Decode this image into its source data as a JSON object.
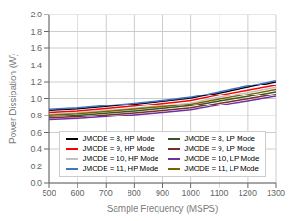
{
  "chart_data": {
    "type": "line",
    "xlabel": "Sample Frequency (MSPS)",
    "ylabel": "Power Dissipation (W)",
    "x": [
      500,
      600,
      700,
      800,
      900,
      1000,
      1100,
      1200,
      1300
    ],
    "series": [
      {
        "name": "JMODE = 8, HP Mode",
        "color": "#000000",
        "values": [
          0.862,
          0.878,
          0.905,
          0.935,
          0.97,
          1.005,
          1.068,
          1.135,
          1.2
        ]
      },
      {
        "name": "JMODE = 9, HP Mode",
        "color": "#ff0000",
        "values": [
          0.838,
          0.855,
          0.882,
          0.91,
          0.943,
          0.978,
          1.042,
          1.1,
          1.158
        ]
      },
      {
        "name": "JMODE = 10, HP Mode",
        "color": "#c0c0c0",
        "values": [
          0.818,
          0.834,
          0.86,
          0.885,
          0.917,
          0.95,
          1.015,
          1.072,
          1.132
        ]
      },
      {
        "name": "JMODE = 11, HP Mode",
        "color": "#4472c4",
        "values": [
          0.873,
          0.89,
          0.917,
          0.947,
          0.978,
          1.015,
          1.08,
          1.148,
          1.213
        ]
      },
      {
        "name": "JMODE = 8, LP Mode",
        "color": "#375623",
        "values": [
          0.79,
          0.806,
          0.83,
          0.855,
          0.884,
          0.916,
          0.972,
          1.025,
          1.082
        ]
      },
      {
        "name": "JMODE = 9, LP Mode",
        "color": "#7b2c2c",
        "values": [
          0.77,
          0.785,
          0.808,
          0.832,
          0.86,
          0.89,
          0.946,
          0.997,
          1.052
        ]
      },
      {
        "name": "JMODE = 10, LP Mode",
        "color": "#7030a0",
        "values": [
          0.75,
          0.765,
          0.787,
          0.811,
          0.838,
          0.867,
          0.923,
          0.973,
          1.028
        ]
      },
      {
        "name": "JMODE = 11, LP Mode",
        "color": "#7f6000",
        "values": [
          0.808,
          0.824,
          0.849,
          0.875,
          0.904,
          0.936,
          0.995,
          1.05,
          1.108
        ]
      }
    ],
    "xlim": [
      500,
      1300
    ],
    "ylim": [
      0,
      2
    ],
    "xticks": [
      500,
      600,
      700,
      800,
      900,
      1000,
      1100,
      1200,
      1300
    ],
    "yticks": [
      {
        "value": 0,
        "label": "0.0"
      },
      0.2,
      0.4,
      0.6,
      0.8,
      {
        "value": 1.0,
        "label": "1.0"
      },
      1.2,
      1.4,
      1.6,
      1.8,
      {
        "value": 2,
        "label": "2.0"
      }
    ],
    "grid": true,
    "legend": "bottom"
  }
}
